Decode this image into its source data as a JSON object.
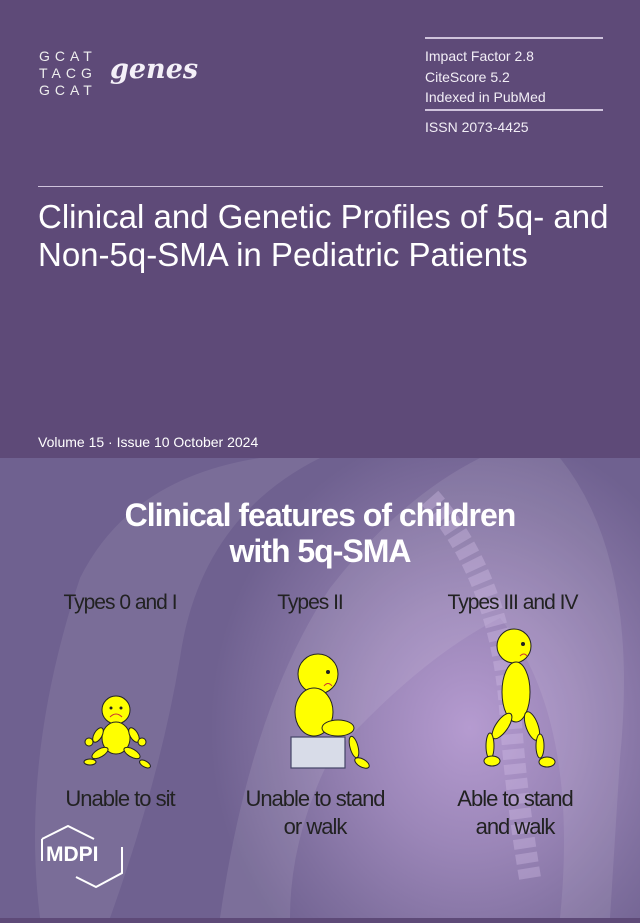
{
  "journal": {
    "dna_lines": [
      "GCAT",
      "TACG",
      "GCAT"
    ],
    "name": "genes"
  },
  "metrics": {
    "impact_factor": "Impact Factor 2.8",
    "citescore": "CiteScore 5.2",
    "indexed": "Indexed in PubMed",
    "issn": "ISSN 2073-4425"
  },
  "article_title": "Clinical and Genetic Profiles of 5q- and Non-5q-SMA in Pediatric Patients",
  "issue": "Volume 15 · Issue 10 October 2024",
  "figure": {
    "title_line1": "Clinical features of children",
    "title_line2": "with 5q-SMA",
    "columns": [
      {
        "type": "Types 0 and I",
        "caption_line1": "Unable to sit",
        "caption_line2": ""
      },
      {
        "type": "Types II",
        "caption_line1": "Unable to stand",
        "caption_line2": "or walk"
      },
      {
        "type": "Types III and IV",
        "caption_line1": "Able to stand",
        "caption_line2": "and walk"
      }
    ],
    "figure_color": "#ffff00"
  },
  "publisher": "MDPI"
}
